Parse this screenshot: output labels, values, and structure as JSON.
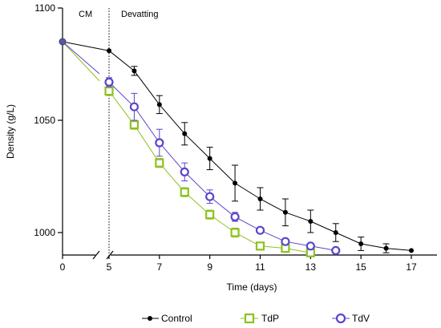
{
  "chart_data": {
    "type": "line",
    "xlabel": "Time (days)",
    "ylabel": "Density (g/L)",
    "x_ticks": [
      0,
      5,
      7,
      9,
      11,
      13,
      15,
      17
    ],
    "y_ticks": [
      1000,
      1050,
      1100
    ],
    "ylim": [
      990,
      1100
    ],
    "x_axis_break": "between 0 and 5",
    "grid": false,
    "legend_position": "bottom",
    "annotations": [
      {
        "text": "CM",
        "region": "left of divider"
      },
      {
        "text": "Devatting",
        "region": "right of divider"
      }
    ],
    "divider_x": 5,
    "series": [
      {
        "name": "Control",
        "color": "#000000",
        "marker": "circle",
        "points": [
          {
            "x": 5,
            "y": 1081,
            "err": 0
          },
          {
            "x": 6,
            "y": 1072,
            "err": 2
          },
          {
            "x": 7,
            "y": 1057,
            "err": 4
          },
          {
            "x": 8,
            "y": 1044,
            "err": 5
          },
          {
            "x": 9,
            "y": 1033,
            "err": 5
          },
          {
            "x": 10,
            "y": 1022,
            "err": 8
          },
          {
            "x": 11,
            "y": 1015,
            "err": 5
          },
          {
            "x": 12,
            "y": 1009,
            "err": 6
          },
          {
            "x": 13,
            "y": 1005,
            "err": 5
          },
          {
            "x": 14,
            "y": 1000,
            "err": 4
          },
          {
            "x": 15,
            "y": 995,
            "err": 3
          },
          {
            "x": 16,
            "y": 993,
            "err": 2
          },
          {
            "x": 17,
            "y": 992,
            "err": 0
          }
        ]
      },
      {
        "name": "TdP",
        "color": "#8dc21f",
        "marker": "square",
        "points": [
          {
            "x": 5,
            "y": 1063,
            "err": 2
          },
          {
            "x": 6,
            "y": 1048,
            "err": 2
          },
          {
            "x": 7,
            "y": 1031,
            "err": 2
          },
          {
            "x": 8,
            "y": 1018,
            "err": 2
          },
          {
            "x": 9,
            "y": 1008,
            "err": 2
          },
          {
            "x": 10,
            "y": 1000,
            "err": 2
          },
          {
            "x": 11,
            "y": 994,
            "err": 1
          },
          {
            "x": 12,
            "y": 993,
            "err": 0
          },
          {
            "x": 13,
            "y": 991,
            "err": 0
          }
        ]
      },
      {
        "name": "TdV",
        "color": "#5b45c9",
        "marker": "circle",
        "points": [
          {
            "x": 5,
            "y": 1067,
            "err": 2
          },
          {
            "x": 6,
            "y": 1056,
            "err": 6
          },
          {
            "x": 7,
            "y": 1040,
            "err": 6
          },
          {
            "x": 8,
            "y": 1027,
            "err": 4
          },
          {
            "x": 9,
            "y": 1016,
            "err": 3
          },
          {
            "x": 10,
            "y": 1007,
            "err": 2
          },
          {
            "x": 11,
            "y": 1001,
            "err": 1
          },
          {
            "x": 12,
            "y": 996,
            "err": 1
          },
          {
            "x": 13,
            "y": 994,
            "err": 1
          },
          {
            "x": 14,
            "y": 992,
            "err": 0
          }
        ]
      }
    ],
    "initial_point": {
      "x": 0,
      "y": 1085,
      "color": "#5a5a9a"
    }
  }
}
